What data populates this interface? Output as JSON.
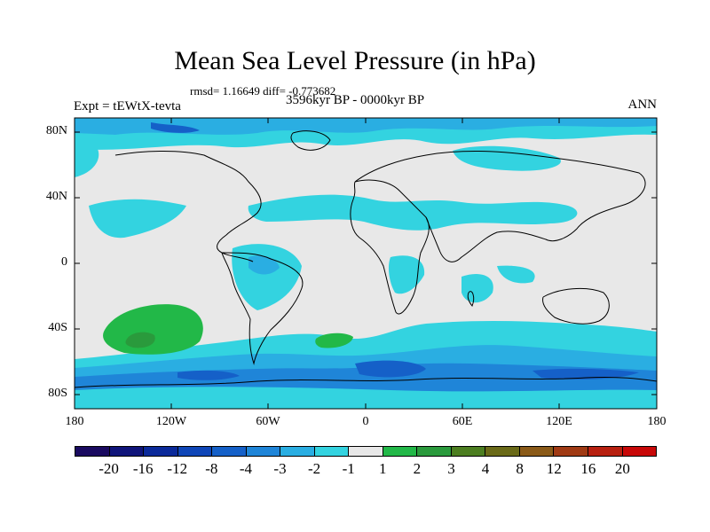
{
  "title": "Mean Sea Level Pressure (in hPa)",
  "rmsd_line": "rmsd= 1.16649 diff= -0.773682",
  "period": "3596kyr BP - 0000kyr BP",
  "experiment": "Expt = tEWtX-tevta",
  "season": "ANN",
  "lat_labels": [
    "80N",
    "40N",
    "0",
    "40S",
    "80S"
  ],
  "lon_labels": [
    "180",
    "120W",
    "60W",
    "0",
    "60E",
    "120E",
    "180"
  ],
  "colorbar": {
    "colors": [
      "#1a0a60",
      "#10157a",
      "#0b2a9a",
      "#0f46b8",
      "#1560c8",
      "#1f85d8",
      "#2aaee2",
      "#33d3e0",
      "#e8e8e8",
      "#22b848",
      "#2a9a3c",
      "#4c7e20",
      "#6a6a18",
      "#8a5a18",
      "#a03a14",
      "#b82010",
      "#c80808"
    ],
    "labels": [
      "-20",
      "-16",
      "-12",
      "-8",
      "-4",
      "-3",
      "-2",
      "-1",
      "1",
      "2",
      "3",
      "4",
      "8",
      "12",
      "16",
      "20"
    ]
  },
  "fill_colors": {
    "neutral": "#e8e8e8",
    "light_cyan": "#33d3e0",
    "cyan": "#2aaee2",
    "blue": "#1f85d8",
    "mid_blue": "#1560c8",
    "deep_blue": "#0f46b8",
    "green": "#22b848",
    "dark_green": "#2a9a3c"
  }
}
